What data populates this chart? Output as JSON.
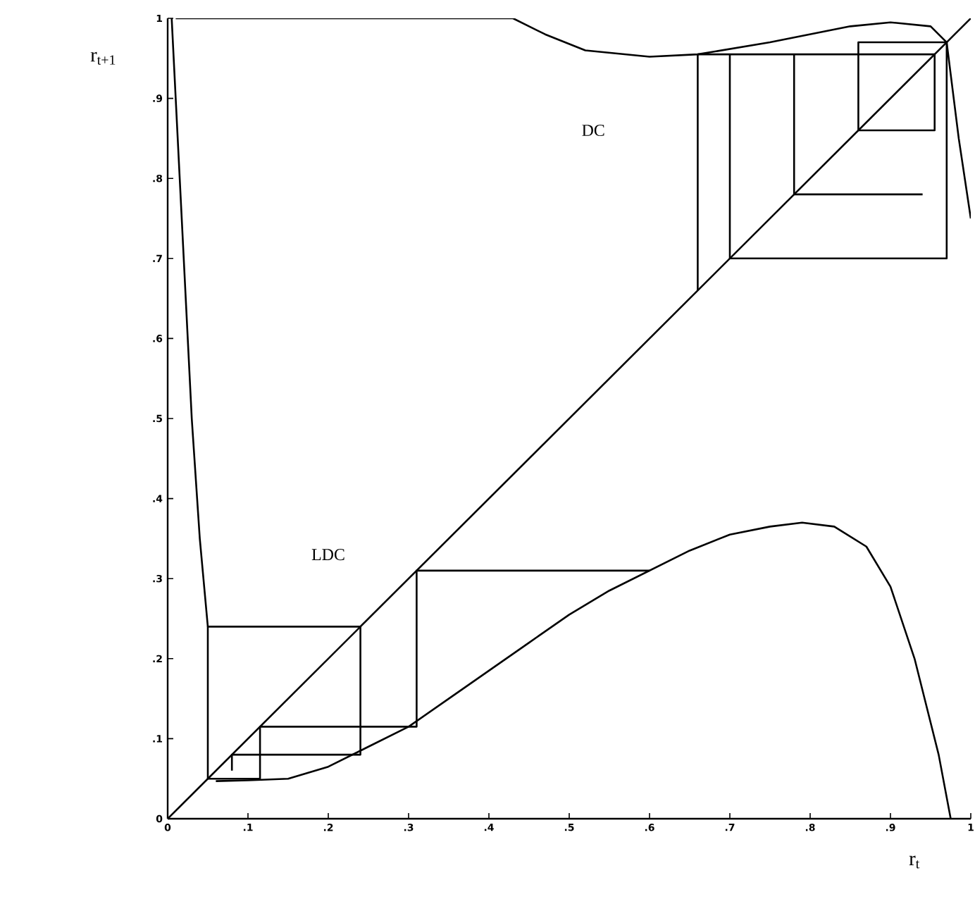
{
  "chart_data": {
    "type": "line",
    "xlabel": "r$_{t}$",
    "ylabel": "r$_{t+1}$",
    "annotations": [
      "DC",
      "LDC"
    ],
    "xlim": [
      0,
      1
    ],
    "ylim": [
      0,
      1
    ],
    "xticks": [
      {
        "value": 0,
        "label": "0"
      },
      {
        "value": 0.1,
        "label": ".1"
      },
      {
        "value": 0.2,
        "label": ".2"
      },
      {
        "value": 0.3,
        "label": ".3"
      },
      {
        "value": 0.4,
        "label": ".4"
      },
      {
        "value": 0.5,
        "label": ".5"
      },
      {
        "value": 0.6,
        "label": ".6"
      },
      {
        "value": 0.7,
        "label": ".7"
      },
      {
        "value": 0.8,
        "label": ".8"
      },
      {
        "value": 0.9,
        "label": ".9"
      },
      {
        "value": 1,
        "label": "1"
      }
    ],
    "yticks": [
      {
        "value": 0,
        "label": "0"
      },
      {
        "value": 0.1,
        "label": ".1"
      },
      {
        "value": 0.2,
        "label": ".2"
      },
      {
        "value": 0.3,
        "label": ".3"
      },
      {
        "value": 0.4,
        "label": ".4"
      },
      {
        "value": 0.5,
        "label": ".5"
      },
      {
        "value": 0.6,
        "label": ".6"
      },
      {
        "value": 0.7,
        "label": ".7"
      },
      {
        "value": 0.8,
        "label": ".8"
      },
      {
        "value": 0.9,
        "label": ".9"
      },
      {
        "value": 1,
        "label": "1"
      }
    ],
    "marker": "none",
    "line_style": "solid",
    "series": [
      {
        "color": "#000000",
        "x": [
          0,
          1
        ],
        "values": [
          0,
          1
        ]
      },
      {
        "color": "#000000",
        "x": [
          0.06,
          0.1,
          0.15,
          0.2,
          0.25,
          0.3,
          0.35,
          0.4,
          0.45,
          0.5,
          0.55,
          0.6,
          0.65,
          0.7,
          0.75,
          0.79,
          0.83,
          0.87,
          0.9,
          0.93,
          0.96,
          0.975
        ],
        "values": [
          0.047,
          0.048,
          0.05,
          0.065,
          0.09,
          0.115,
          0.15,
          0.185,
          0.22,
          0.255,
          0.285,
          0.31,
          0.335,
          0.355,
          0.365,
          0.37,
          0.365,
          0.34,
          0.29,
          0.2,
          0.08,
          0
        ]
      },
      {
        "color": "#000000",
        "x": [
          0.005,
          0.01,
          0.02,
          0.03,
          0.04,
          0.05
        ],
        "values": [
          1,
          0.9,
          0.7,
          0.5,
          0.35,
          0.24
        ]
      },
      {
        "color": "#000000",
        "x": [
          0.01,
          0.43,
          0.47,
          0.52,
          0.6,
          0.66,
          0.75,
          0.85,
          0.9,
          0.95,
          0.97,
          0.985,
          1
        ],
        "values": [
          1,
          1,
          0.98,
          0.96,
          0.952,
          0.955,
          0.97,
          0.99,
          0.995,
          0.99,
          0.97,
          0.85,
          0.75
        ]
      },
      {
        "color": "#000000",
        "x": [
          0.6,
          0.31,
          0.31,
          0.115,
          0.115,
          0.05,
          0.05,
          0.24,
          0.24,
          0.08,
          0.08
        ],
        "values": [
          0.31,
          0.31,
          0.115,
          0.115,
          0.05,
          0.05,
          0.24,
          0.24,
          0.08,
          0.08,
          0.06
        ]
      },
      {
        "color": "#000000",
        "x": [
          0.66,
          0.66,
          0.955,
          0.955,
          0.86,
          0.86,
          0.97,
          0.97,
          0.7,
          0.7,
          0.78,
          0.78,
          0.94
        ],
        "values": [
          0.66,
          0.955,
          0.955,
          0.86,
          0.86,
          0.97,
          0.97,
          0.7,
          0.7,
          0.955,
          0.955,
          0.78,
          0.78
        ]
      }
    ]
  }
}
